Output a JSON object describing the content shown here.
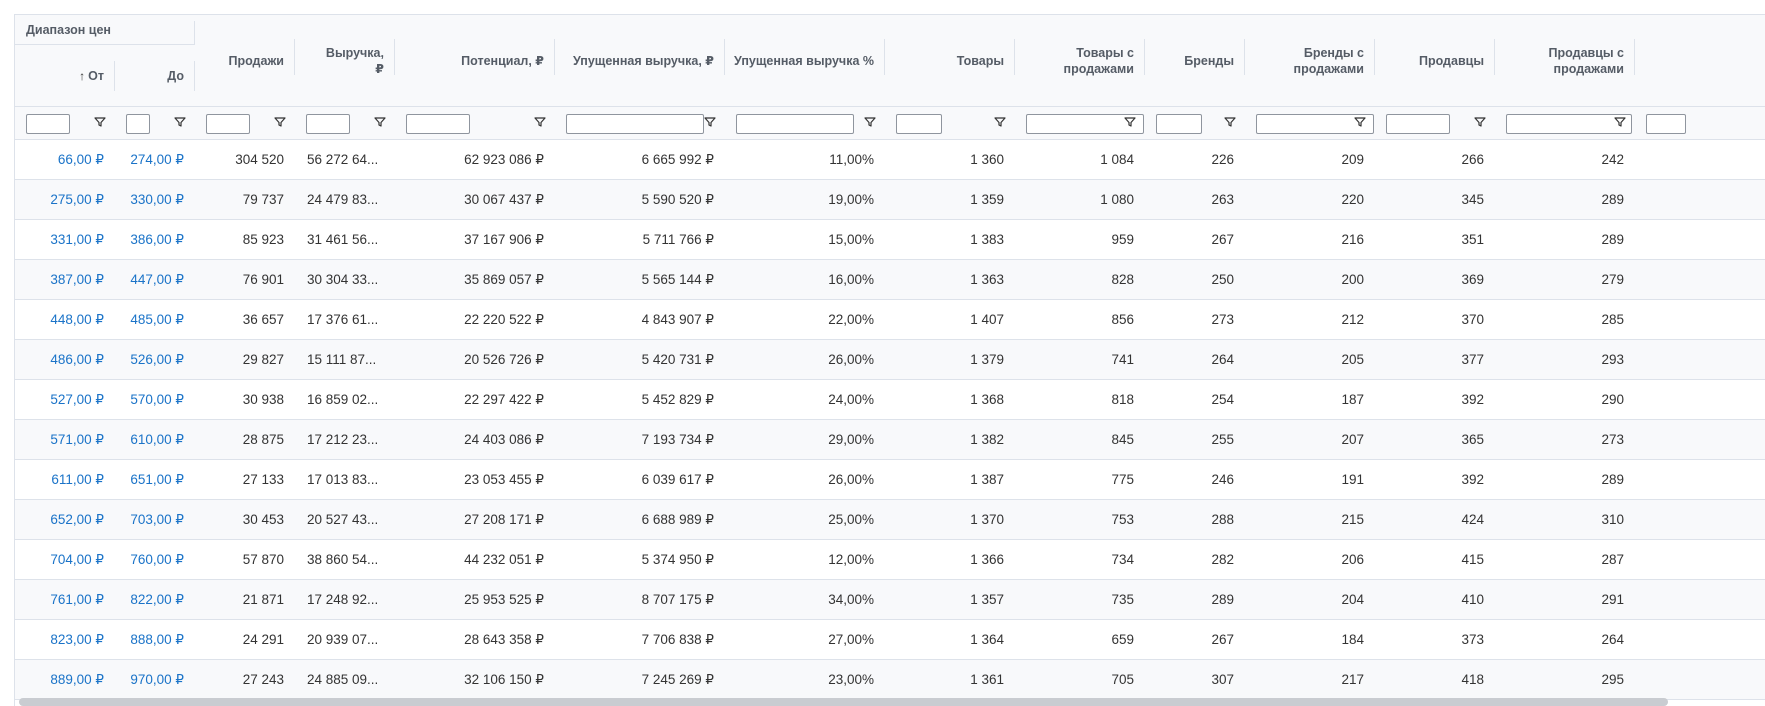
{
  "table": {
    "group_header": "Диапазон цен",
    "sort_icon": "arrow-up-icon",
    "sub_from": "От",
    "sub_to": "До",
    "headers": [
      "Продажи",
      "Выручка, ₽",
      "Потенциал, ₽",
      "Упущенная выручка, ₽",
      "Упущенная выручка %",
      "Товары",
      "Товары с продажами",
      "Бренды",
      "Бренды с продажами",
      "Продавцы",
      "Продавцы с продажами"
    ],
    "filter_icon": "filter-funnel-icon",
    "rows": [
      [
        "66,00 ₽",
        "274,00 ₽",
        "304 520",
        "56 272 64...",
        "62 923 086 ₽",
        "6 665 992 ₽",
        "11,00%",
        "1 360",
        "1 084",
        "226",
        "209",
        "266",
        "242"
      ],
      [
        "275,00 ₽",
        "330,00 ₽",
        "79 737",
        "24 479 83...",
        "30 067 437 ₽",
        "5 590 520 ₽",
        "19,00%",
        "1 359",
        "1 080",
        "263",
        "220",
        "345",
        "289"
      ],
      [
        "331,00 ₽",
        "386,00 ₽",
        "85 923",
        "31 461 56...",
        "37 167 906 ₽",
        "5 711 766 ₽",
        "15,00%",
        "1 383",
        "959",
        "267",
        "216",
        "351",
        "289"
      ],
      [
        "387,00 ₽",
        "447,00 ₽",
        "76 901",
        "30 304 33...",
        "35 869 057 ₽",
        "5 565 144 ₽",
        "16,00%",
        "1 363",
        "828",
        "250",
        "200",
        "369",
        "279"
      ],
      [
        "448,00 ₽",
        "485,00 ₽",
        "36 657",
        "17 376 61...",
        "22 220 522 ₽",
        "4 843 907 ₽",
        "22,00%",
        "1 407",
        "856",
        "273",
        "212",
        "370",
        "285"
      ],
      [
        "486,00 ₽",
        "526,00 ₽",
        "29 827",
        "15 111 87...",
        "20 526 726 ₽",
        "5 420 731 ₽",
        "26,00%",
        "1 379",
        "741",
        "264",
        "205",
        "377",
        "293"
      ],
      [
        "527,00 ₽",
        "570,00 ₽",
        "30 938",
        "16 859 02...",
        "22 297 422 ₽",
        "5 452 829 ₽",
        "24,00%",
        "1 368",
        "818",
        "254",
        "187",
        "392",
        "290"
      ],
      [
        "571,00 ₽",
        "610,00 ₽",
        "28 875",
        "17 212 23...",
        "24 403 086 ₽",
        "7 193 734 ₽",
        "29,00%",
        "1 382",
        "845",
        "255",
        "207",
        "365",
        "273"
      ],
      [
        "611,00 ₽",
        "651,00 ₽",
        "27 133",
        "17 013 83...",
        "23 053 455 ₽",
        "6 039 617 ₽",
        "26,00%",
        "1 387",
        "775",
        "246",
        "191",
        "392",
        "289"
      ],
      [
        "652,00 ₽",
        "703,00 ₽",
        "30 453",
        "20 527 43...",
        "27 208 171 ₽",
        "6 688 989 ₽",
        "25,00%",
        "1 370",
        "753",
        "288",
        "215",
        "424",
        "310"
      ],
      [
        "704,00 ₽",
        "760,00 ₽",
        "57 870",
        "38 860 54...",
        "44 232 051 ₽",
        "5 374 950 ₽",
        "12,00%",
        "1 366",
        "734",
        "282",
        "206",
        "415",
        "287"
      ],
      [
        "761,00 ₽",
        "822,00 ₽",
        "21 871",
        "17 248 92...",
        "25 953 525 ₽",
        "8 707 175 ₽",
        "34,00%",
        "1 357",
        "735",
        "289",
        "204",
        "410",
        "291"
      ],
      [
        "823,00 ₽",
        "888,00 ₽",
        "24 291",
        "20 939 07...",
        "28 643 358 ₽",
        "7 706 838 ₽",
        "27,00%",
        "1 364",
        "659",
        "267",
        "184",
        "373",
        "264"
      ],
      [
        "889,00 ₽",
        "970,00 ₽",
        "27 243",
        "24 885 09...",
        "32 106 150 ₽",
        "7 245 269 ₽",
        "23,00%",
        "1 361",
        "705",
        "307",
        "217",
        "418",
        "295"
      ]
    ]
  }
}
